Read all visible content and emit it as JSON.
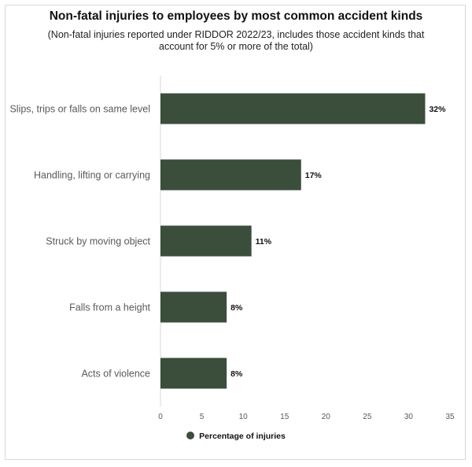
{
  "chart_data": {
    "type": "bar",
    "orientation": "horizontal",
    "title": "Non-fatal injuries to employees by most common accident kinds",
    "subtitle": "(Non-fatal injuries reported under RIDDOR 2022/23, includes those accident kinds that account for 5% or more of the total)",
    "categories": [
      "Slips, trips or falls on same level",
      "Handling, lifting or carrying",
      "Struck by moving object",
      "Falls from a height",
      "Acts of violence"
    ],
    "series": [
      {
        "name": "Percentage of injuries",
        "values": [
          32,
          17,
          11,
          8,
          8
        ],
        "data_labels": [
          "32%",
          "17%",
          "11%",
          "8%",
          "8%"
        ],
        "color": "#3b4d3b"
      }
    ],
    "xlim": [
      0,
      35
    ],
    "xticks": [
      0,
      5,
      10,
      15,
      20,
      25,
      30,
      35
    ],
    "grid": false,
    "legend_position": "bottom"
  }
}
